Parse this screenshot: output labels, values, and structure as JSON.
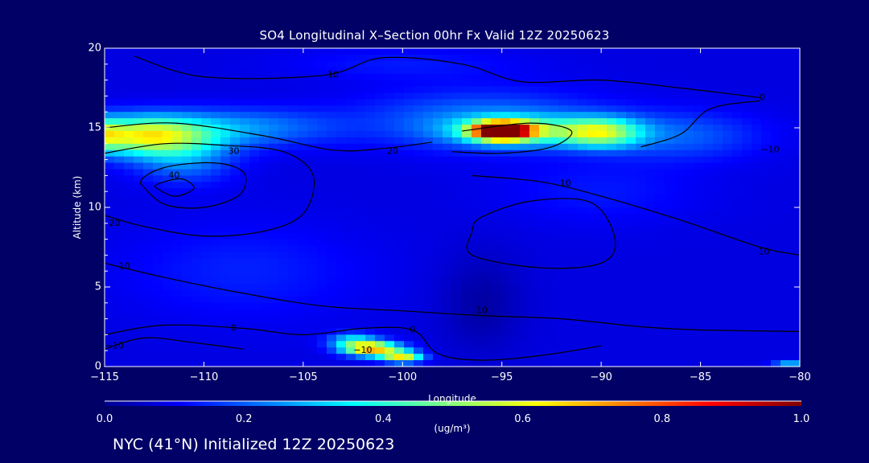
{
  "chart_data": {
    "type": "heatmap",
    "title": "SO4 Longitudinal X–Section 00hr  Fx Valid 12Z 20250623",
    "xlabel": "Longitude",
    "ylabel": "Altitude (km)",
    "xlim": [
      -115,
      -80
    ],
    "ylim": [
      0,
      20
    ],
    "x_ticks": [
      -115,
      -110,
      -105,
      -100,
      -95,
      -90,
      -85,
      -80
    ],
    "x_tick_labels": [
      "−115",
      "−110",
      "−105",
      "−100",
      "−95",
      "−90",
      "−85",
      "−80"
    ],
    "y_ticks": [
      0,
      5,
      10,
      15,
      20
    ],
    "y_tick_labels": [
      "0",
      "5",
      "10",
      "15",
      "20"
    ],
    "colorbar": {
      "min": 0.0,
      "max": 1.0,
      "ticks": [
        0.0,
        0.2,
        0.4,
        0.6,
        0.8,
        1.0
      ],
      "tick_labels": [
        "0.0",
        "0.2",
        "0.4",
        "0.6",
        "0.8",
        "1.0"
      ],
      "units": "(ug/m³)",
      "colormap": [
        "#00008f",
        "#0000ff",
        "#00ffff",
        "#ffff00",
        "#ff0000",
        "#800000"
      ]
    },
    "background_value": 0.08,
    "features": [
      {
        "lon": -113,
        "alt": 14.5,
        "slon": 3.2,
        "salt": 1.2,
        "value": 0.5
      },
      {
        "lon": -115,
        "alt": 14.6,
        "slon": 0.9,
        "salt": 1.0,
        "value": 0.2
      },
      {
        "lon": -108,
        "alt": 15.0,
        "slon": 4.5,
        "salt": 1.2,
        "value": 0.16
      },
      {
        "lon": -111,
        "alt": 13.0,
        "slon": 2.5,
        "salt": 1.5,
        "value": 0.15
      },
      {
        "lon": -95,
        "alt": 14.8,
        "slon": 1.4,
        "salt": 0.55,
        "value": 0.95
      },
      {
        "lon": -94,
        "alt": 14.8,
        "slon": 3.5,
        "salt": 0.9,
        "value": 0.3
      },
      {
        "lon": -90,
        "alt": 14.7,
        "slon": 2.0,
        "salt": 0.9,
        "value": 0.38
      },
      {
        "lon": -96,
        "alt": 15.5,
        "slon": 6.0,
        "salt": 1.8,
        "value": 0.15
      },
      {
        "lon": -86,
        "alt": 14.5,
        "slon": 4.0,
        "salt": 1.5,
        "value": 0.12
      },
      {
        "lon": -101.5,
        "alt": 1.1,
        "slon": 1.4,
        "salt": 0.45,
        "value": 0.6
      },
      {
        "lon": -100,
        "alt": 0.6,
        "slon": 1.0,
        "salt": 0.35,
        "value": 0.5
      },
      {
        "lon": -102.5,
        "alt": 1.6,
        "slon": 1.2,
        "salt": 0.5,
        "value": 0.25
      },
      {
        "lon": -108,
        "alt": 6.0,
        "slon": 6.0,
        "salt": 3.0,
        "value": 0.06
      },
      {
        "lon": -100,
        "alt": 19.0,
        "slon": 6.0,
        "salt": 1.0,
        "value": 0.05
      },
      {
        "lon": -90,
        "alt": 11.0,
        "slon": 5.0,
        "salt": 2.0,
        "value": 0.05
      },
      {
        "lon": -96,
        "alt": 4.0,
        "slon": 2.0,
        "salt": 3.0,
        "value": -0.06
      },
      {
        "lon": -80.5,
        "alt": 0.2,
        "slon": 0.8,
        "salt": 0.2,
        "value": 0.2
      }
    ],
    "contour_labels": [
      {
        "lon": -103.5,
        "alt": 18.3,
        "text": "10"
      },
      {
        "lon": -108.5,
        "alt": 13.5,
        "text": "30"
      },
      {
        "lon": -111.5,
        "alt": 12.0,
        "text": "40"
      },
      {
        "lon": -100.5,
        "alt": 13.5,
        "text": "20"
      },
      {
        "lon": -114.5,
        "alt": 9.0,
        "text": "20"
      },
      {
        "lon": -114.0,
        "alt": 6.3,
        "text": "10"
      },
      {
        "lon": -108.5,
        "alt": 2.4,
        "text": "0"
      },
      {
        "lon": -114.5,
        "alt": 1.3,
        "text": "−10"
      },
      {
        "lon": -102.0,
        "alt": 1.0,
        "text": "−10"
      },
      {
        "lon": -99.5,
        "alt": 2.3,
        "text": "0"
      },
      {
        "lon": -96.0,
        "alt": 3.5,
        "text": "10"
      },
      {
        "lon": -91.8,
        "alt": 11.5,
        "text": "10"
      },
      {
        "lon": -81.9,
        "alt": 16.9,
        "text": "0"
      },
      {
        "lon": -81.5,
        "alt": 13.6,
        "text": "−10"
      },
      {
        "lon": -81.8,
        "alt": 7.2,
        "text": "10"
      }
    ],
    "contours": [
      {
        "level": "10",
        "points": [
          [
            -113.5,
            19.5
          ],
          [
            -110,
            18.2
          ],
          [
            -104,
            18.3
          ],
          [
            -101,
            19.4
          ],
          [
            -97,
            19.0
          ],
          [
            -94,
            17.9
          ],
          [
            -90,
            18.0
          ],
          [
            -86,
            17.5
          ],
          [
            -82,
            16.9
          ]
        ]
      },
      {
        "level": "40",
        "closed": true,
        "points": [
          [
            -112.5,
            11.3
          ],
          [
            -111.5,
            10.7
          ],
          [
            -110.5,
            11.2
          ],
          [
            -111.2,
            11.8
          ]
        ]
      },
      {
        "level": "30",
        "closed": true,
        "points": [
          [
            -113.2,
            11.5
          ],
          [
            -112,
            10.2
          ],
          [
            -110,
            10.0
          ],
          [
            -108.2,
            10.8
          ],
          [
            -108,
            12.2
          ],
          [
            -109.5,
            12.8
          ],
          [
            -112,
            12.5
          ]
        ]
      },
      {
        "level": "20",
        "points": [
          [
            -115,
            13.4
          ],
          [
            -112,
            14.0
          ],
          [
            -109,
            13.9
          ],
          [
            -106,
            13.5
          ],
          [
            -104.5,
            12.0
          ],
          [
            -105,
            9.6
          ],
          [
            -107,
            8.5
          ],
          [
            -110,
            8.2
          ],
          [
            -113,
            8.8
          ],
          [
            -115,
            9.5
          ]
        ]
      },
      {
        "level": "20b",
        "points": [
          [
            -115,
            15.0
          ],
          [
            -111.5,
            15.3
          ],
          [
            -107,
            14.5
          ],
          [
            -103.5,
            13.6
          ],
          [
            -101,
            13.7
          ],
          [
            -98.5,
            14.1
          ]
        ]
      },
      {
        "level": "10",
        "points": [
          [
            -115,
            6.5
          ],
          [
            -112,
            5.6
          ],
          [
            -108,
            4.6
          ],
          [
            -104,
            3.8
          ],
          [
            -100,
            3.5
          ],
          [
            -96,
            3.2
          ],
          [
            -92,
            3.0
          ],
          [
            -88,
            2.5
          ],
          [
            -85,
            2.3
          ],
          [
            -80,
            2.2
          ]
        ]
      },
      {
        "level": "0",
        "points": [
          [
            -115,
            2.0
          ],
          [
            -112,
            2.6
          ],
          [
            -108,
            2.4
          ],
          [
            -105,
            2.0
          ],
          [
            -102,
            2.4
          ],
          [
            -99.5,
            2.3
          ],
          [
            -98.2,
            0.8
          ],
          [
            -96,
            0.4
          ],
          [
            -93,
            0.7
          ],
          [
            -90,
            1.3
          ]
        ]
      },
      {
        "level": "-10",
        "points": [
          [
            -115,
            1.1
          ],
          [
            -113,
            1.8
          ],
          [
            -110.5,
            1.5
          ],
          [
            -108,
            1.1
          ]
        ]
      },
      {
        "level": "10b",
        "closed": true,
        "points": [
          [
            -96.5,
            8.5
          ],
          [
            -96.5,
            7.0
          ],
          [
            -93,
            6.2
          ],
          [
            -90,
            6.5
          ],
          [
            -89.3,
            8.0
          ],
          [
            -90.5,
            10.3
          ],
          [
            -93.5,
            10.4
          ],
          [
            -96,
            9.4
          ]
        ]
      },
      {
        "level": "10c",
        "points": [
          [
            -96.5,
            12.0
          ],
          [
            -93,
            11.6
          ],
          [
            -90,
            10.7
          ],
          [
            -86,
            9.2
          ],
          [
            -82,
            7.5
          ],
          [
            -80,
            7.0
          ]
        ]
      },
      {
        "level": "0b",
        "points": [
          [
            -88,
            13.8
          ],
          [
            -86,
            14.6
          ],
          [
            -84.5,
            16.2
          ],
          [
            -82,
            16.7
          ]
        ]
      },
      {
        "level": "20c",
        "points": [
          [
            -97,
            14.8
          ],
          [
            -93.5,
            15.3
          ],
          [
            -91.5,
            14.8
          ],
          [
            -92.5,
            13.8
          ],
          [
            -95,
            13.4
          ],
          [
            -97.5,
            13.5
          ]
        ]
      }
    ]
  },
  "figure": {
    "title": "SO4 Longitudinal X–Section 00hr  Fx Valid 12Z 20250623",
    "caption": "NYC (41°N) Initialized 12Z 20250623"
  }
}
